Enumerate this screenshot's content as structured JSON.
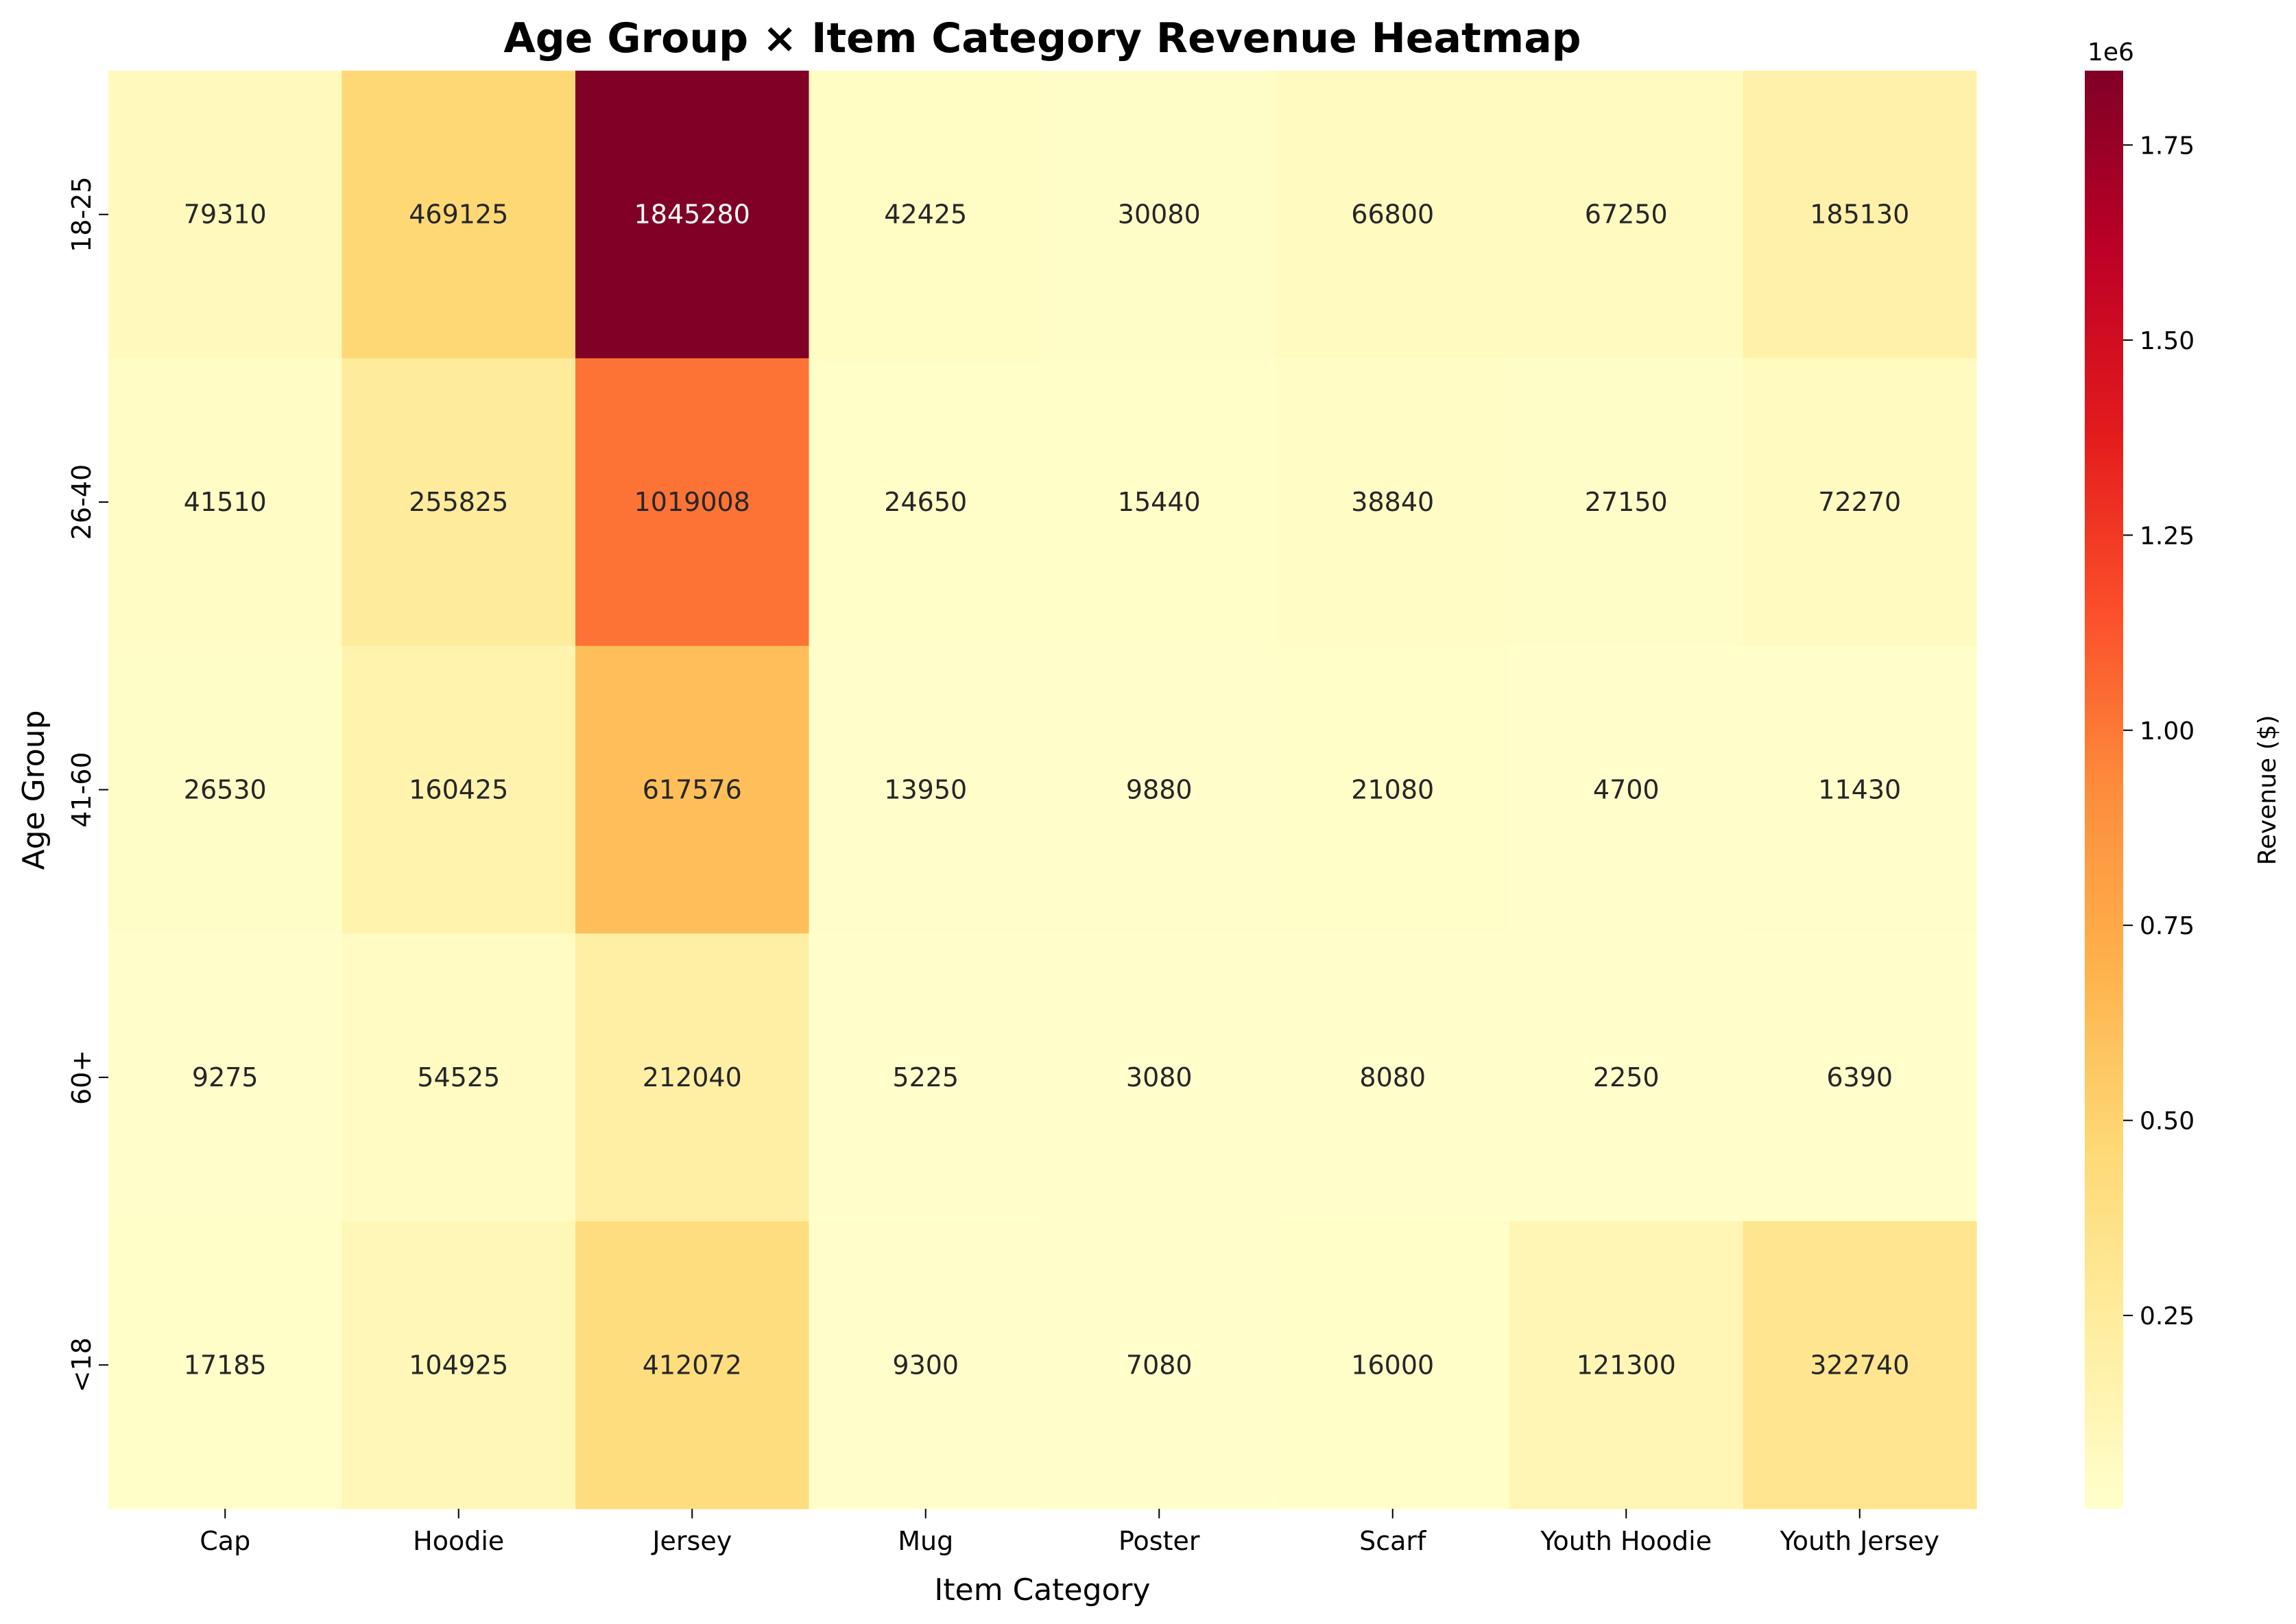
{
  "chart_data": {
    "type": "heatmap",
    "title": "Age Group × Item Category Revenue Heatmap",
    "xlabel": "Item Category",
    "ylabel": "Age Group",
    "x_categories": [
      "Cap",
      "Hoodie",
      "Jersey",
      "Mug",
      "Poster",
      "Scarf",
      "Youth Hoodie",
      "Youth Jersey"
    ],
    "y_categories": [
      "18-25",
      "26-40",
      "41-60",
      "60+",
      "<18"
    ],
    "values": [
      [
        79310,
        469125,
        1845280,
        42425,
        30080,
        66800,
        67250,
        185130
      ],
      [
        41510,
        255825,
        1019008,
        24650,
        15440,
        38840,
        27150,
        72270
      ],
      [
        26530,
        160425,
        617576,
        13950,
        9880,
        21080,
        4700,
        11430
      ],
      [
        9275,
        54525,
        212040,
        5225,
        3080,
        8080,
        2250,
        6390
      ],
      [
        17185,
        104925,
        412072,
        9300,
        7080,
        16000,
        121300,
        322740
      ]
    ],
    "colormap": "YlOrRd",
    "color_stops": [
      "#ffffcc",
      "#ffeda0",
      "#fed976",
      "#feb24c",
      "#fd8d3c",
      "#fc4e2a",
      "#e31a1c",
      "#bd0026",
      "#800026"
    ],
    "vmin": 2250,
    "vmax": 1845280,
    "colorbar": {
      "label": "Revenue ($)",
      "exponent_label": "1e6",
      "ticks": [
        0.25,
        0.5,
        0.75,
        1.0,
        1.25,
        1.5,
        1.75
      ],
      "tick_labels": [
        "0.25",
        "0.50",
        "0.75",
        "1.00",
        "1.25",
        "1.50",
        "1.75"
      ],
      "tick_scale": 1000000
    },
    "grid": false,
    "annotations": true
  }
}
